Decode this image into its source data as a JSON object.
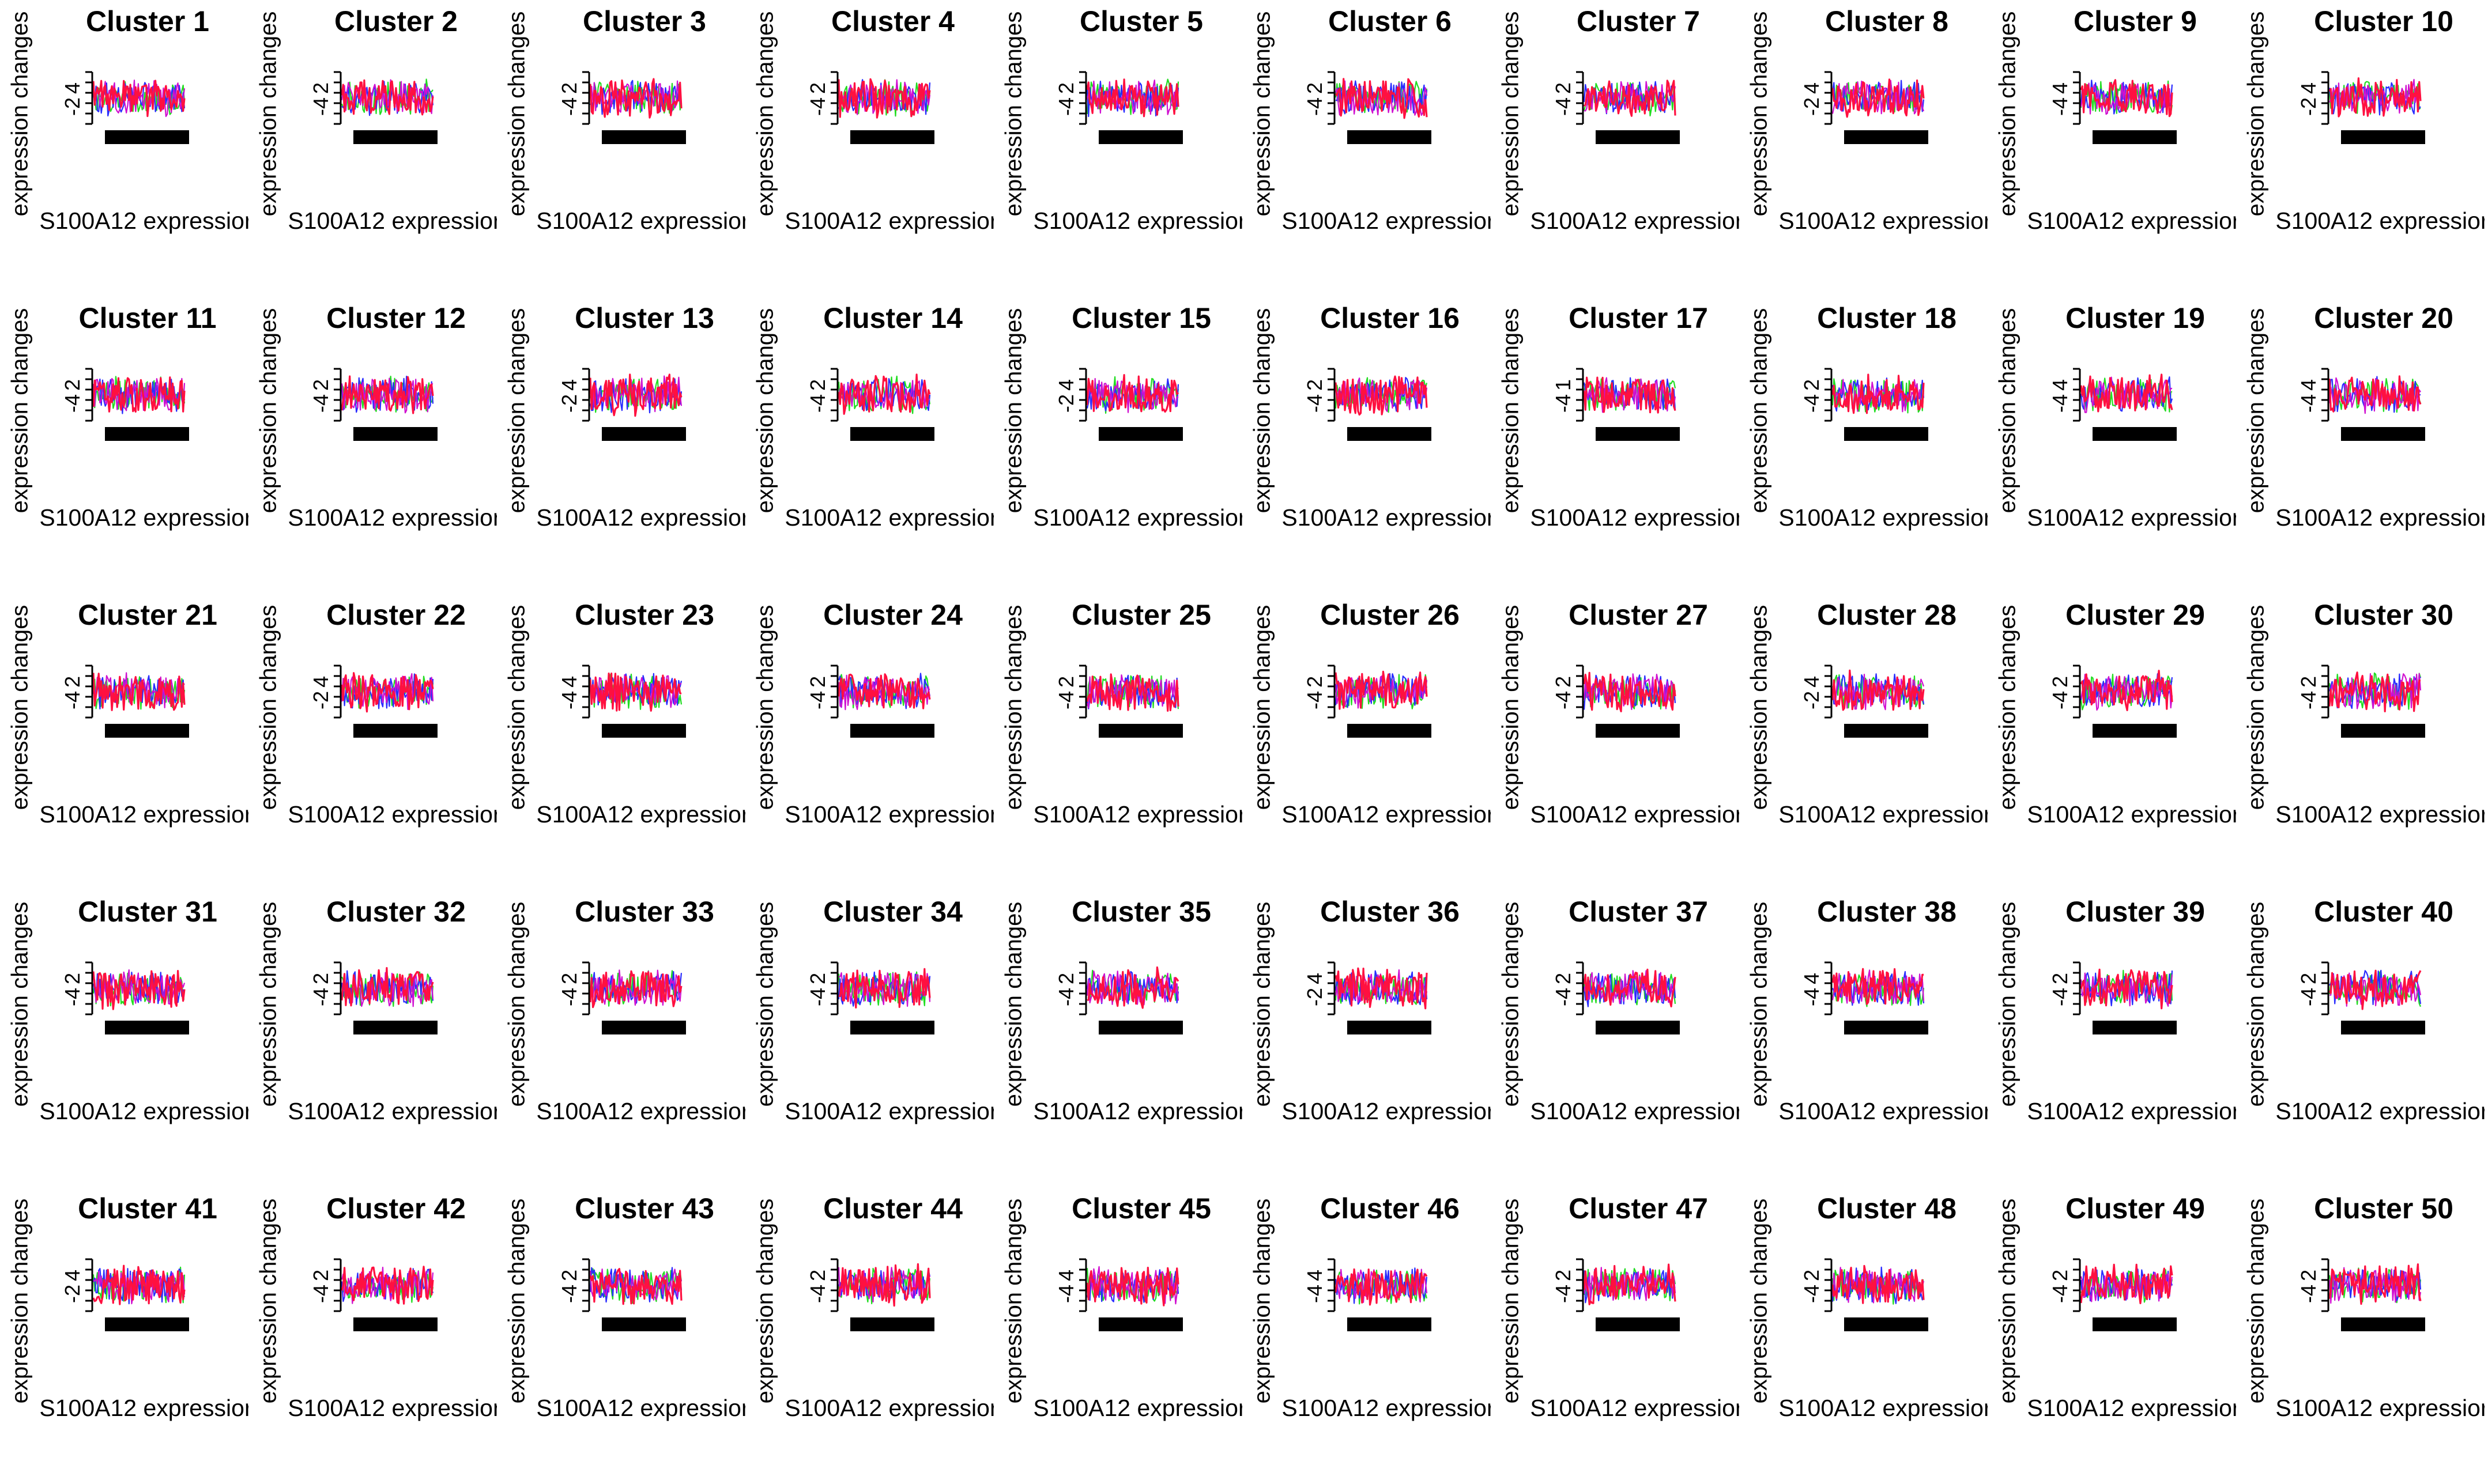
{
  "figure": {
    "rows": 5,
    "cols": 10
  },
  "colors": {
    "series_red": "#ff1040",
    "series_blue": "#2a2cff",
    "series_green": "#22dd22",
    "series_magenta": "#d010d0",
    "axis": "#000000",
    "bar": "#000000",
    "background": "#ffffff"
  },
  "chart_data": [
    {
      "type": "line",
      "title": "Cluster 1",
      "xlabel": "S100A12 expressior",
      "ylabel": "expression changes",
      "yticks": [
        "4",
        "-2"
      ]
    },
    {
      "type": "line",
      "title": "Cluster 2",
      "xlabel": "S100A12 expressior",
      "ylabel": "expression changes",
      "yticks": [
        "2",
        "-4"
      ]
    },
    {
      "type": "line",
      "title": "Cluster 3",
      "xlabel": "S100A12 expressior",
      "ylabel": "expression changes",
      "yticks": [
        "2",
        "-4"
      ]
    },
    {
      "type": "line",
      "title": "Cluster 4",
      "xlabel": "S100A12 expressior",
      "ylabel": "expression changes",
      "yticks": [
        "2",
        "-4"
      ]
    },
    {
      "type": "line",
      "title": "Cluster 5",
      "xlabel": "S100A12 expressior",
      "ylabel": "expression changes",
      "yticks": [
        "2",
        "-4"
      ]
    },
    {
      "type": "line",
      "title": "Cluster 6",
      "xlabel": "S100A12 expressior",
      "ylabel": "expression changes",
      "yticks": [
        "2",
        "-4"
      ]
    },
    {
      "type": "line",
      "title": "Cluster 7",
      "xlabel": "S100A12 expressior",
      "ylabel": "expression changes",
      "yticks": [
        "2",
        "-4"
      ]
    },
    {
      "type": "line",
      "title": "Cluster 8",
      "xlabel": "S100A12 expressior",
      "ylabel": "expression changes",
      "yticks": [
        "4",
        "-2"
      ]
    },
    {
      "type": "line",
      "title": "Cluster 9",
      "xlabel": "S100A12 expressior",
      "ylabel": "expression changes",
      "yticks": [
        "4",
        "-4"
      ]
    },
    {
      "type": "line",
      "title": "Cluster 10",
      "xlabel": "S100A12 expressior",
      "ylabel": "expression changes",
      "yticks": [
        "4",
        "-2"
      ]
    },
    {
      "type": "line",
      "title": "Cluster 11",
      "xlabel": "S100A12 expressior",
      "ylabel": "expression changes",
      "yticks": [
        "2",
        "-4"
      ]
    },
    {
      "type": "line",
      "title": "Cluster 12",
      "xlabel": "S100A12 expressior",
      "ylabel": "expression changes",
      "yticks": [
        "2",
        "-4"
      ]
    },
    {
      "type": "line",
      "title": "Cluster 13",
      "xlabel": "S100A12 expressior",
      "ylabel": "expression changes",
      "yticks": [
        "4",
        "-2"
      ]
    },
    {
      "type": "line",
      "title": "Cluster 14",
      "xlabel": "S100A12 expressior",
      "ylabel": "expression changes",
      "yticks": [
        "2",
        "-4"
      ]
    },
    {
      "type": "line",
      "title": "Cluster 15",
      "xlabel": "S100A12 expressior",
      "ylabel": "expression changes",
      "yticks": [
        "4",
        "-2"
      ]
    },
    {
      "type": "line",
      "title": "Cluster 16",
      "xlabel": "S100A12 expressior",
      "ylabel": "expression changes",
      "yticks": [
        "2",
        "-4"
      ]
    },
    {
      "type": "line",
      "title": "Cluster 17",
      "xlabel": "S100A12 expressior",
      "ylabel": "expression changes",
      "yticks": [
        "1",
        "-4"
      ]
    },
    {
      "type": "line",
      "title": "Cluster 18",
      "xlabel": "S100A12 expressior",
      "ylabel": "expression changes",
      "yticks": [
        "2",
        "-4"
      ]
    },
    {
      "type": "line",
      "title": "Cluster 19",
      "xlabel": "S100A12 expressior",
      "ylabel": "expression changes",
      "yticks": [
        "4",
        "-4"
      ]
    },
    {
      "type": "line",
      "title": "Cluster 20",
      "xlabel": "S100A12 expressior",
      "ylabel": "expression changes",
      "yticks": [
        "4",
        "-4"
      ]
    },
    {
      "type": "line",
      "title": "Cluster 21",
      "xlabel": "S100A12 expressior",
      "ylabel": "expression changes",
      "yticks": [
        "2",
        "-4"
      ]
    },
    {
      "type": "line",
      "title": "Cluster 22",
      "xlabel": "S100A12 expressior",
      "ylabel": "expression changes",
      "yticks": [
        "4",
        "-2"
      ]
    },
    {
      "type": "line",
      "title": "Cluster 23",
      "xlabel": "S100A12 expressior",
      "ylabel": "expression changes",
      "yticks": [
        "4",
        "-4"
      ]
    },
    {
      "type": "line",
      "title": "Cluster 24",
      "xlabel": "S100A12 expressior",
      "ylabel": "expression changes",
      "yticks": [
        "2",
        "-4"
      ]
    },
    {
      "type": "line",
      "title": "Cluster 25",
      "xlabel": "S100A12 expressior",
      "ylabel": "expression changes",
      "yticks": [
        "2",
        "-4"
      ]
    },
    {
      "type": "line",
      "title": "Cluster 26",
      "xlabel": "S100A12 expressior",
      "ylabel": "expression changes",
      "yticks": [
        "2",
        "-4"
      ]
    },
    {
      "type": "line",
      "title": "Cluster 27",
      "xlabel": "S100A12 expressior",
      "ylabel": "expression changes",
      "yticks": [
        "2",
        "-4"
      ]
    },
    {
      "type": "line",
      "title": "Cluster 28",
      "xlabel": "S100A12 expressior",
      "ylabel": "expression changes",
      "yticks": [
        "4",
        "-2"
      ]
    },
    {
      "type": "line",
      "title": "Cluster 29",
      "xlabel": "S100A12 expressior",
      "ylabel": "expression changes",
      "yticks": [
        "2",
        "-4"
      ]
    },
    {
      "type": "line",
      "title": "Cluster 30",
      "xlabel": "S100A12 expressior",
      "ylabel": "expression changes",
      "yticks": [
        "2",
        "-4"
      ]
    },
    {
      "type": "line",
      "title": "Cluster 31",
      "xlabel": "S100A12 expressior",
      "ylabel": "expression changes",
      "yticks": [
        "2",
        "-4"
      ]
    },
    {
      "type": "line",
      "title": "Cluster 32",
      "xlabel": "S100A12 expressior",
      "ylabel": "expression changes",
      "yticks": [
        "2",
        "-4"
      ]
    },
    {
      "type": "line",
      "title": "Cluster 33",
      "xlabel": "S100A12 expressior",
      "ylabel": "expression changes",
      "yticks": [
        "2",
        "-4"
      ]
    },
    {
      "type": "line",
      "title": "Cluster 34",
      "xlabel": "S100A12 expressior",
      "ylabel": "expression changes",
      "yticks": [
        "2",
        "-4"
      ]
    },
    {
      "type": "line",
      "title": "Cluster 35",
      "xlabel": "S100A12 expressior",
      "ylabel": "expression changes",
      "yticks": [
        "2",
        "-4"
      ]
    },
    {
      "type": "line",
      "title": "Cluster 36",
      "xlabel": "S100A12 expressior",
      "ylabel": "expression changes",
      "yticks": [
        "4",
        "-2"
      ]
    },
    {
      "type": "line",
      "title": "Cluster 37",
      "xlabel": "S100A12 expressior",
      "ylabel": "expression changes",
      "yticks": [
        "2",
        "-4"
      ]
    },
    {
      "type": "line",
      "title": "Cluster 38",
      "xlabel": "S100A12 expressior",
      "ylabel": "expression changes",
      "yticks": [
        "4",
        "-4"
      ]
    },
    {
      "type": "line",
      "title": "Cluster 39",
      "xlabel": "S100A12 expressior",
      "ylabel": "expression changes",
      "yticks": [
        "2",
        "-4"
      ]
    },
    {
      "type": "line",
      "title": "Cluster 40",
      "xlabel": "S100A12 expressior",
      "ylabel": "expression changes",
      "yticks": [
        "2",
        "-4"
      ]
    },
    {
      "type": "line",
      "title": "Cluster 41",
      "xlabel": "S100A12 expressior",
      "ylabel": "expression changes",
      "yticks": [
        "4",
        "-2"
      ]
    },
    {
      "type": "line",
      "title": "Cluster 42",
      "xlabel": "S100A12 expressior",
      "ylabel": "expression changes",
      "yticks": [
        "2",
        "-4"
      ]
    },
    {
      "type": "line",
      "title": "Cluster 43",
      "xlabel": "S100A12 expressior",
      "ylabel": "expression changes",
      "yticks": [
        "2",
        "-4"
      ]
    },
    {
      "type": "line",
      "title": "Cluster 44",
      "xlabel": "S100A12 expressior",
      "ylabel": "expression changes",
      "yticks": [
        "2",
        "-4"
      ]
    },
    {
      "type": "line",
      "title": "Cluster 45",
      "xlabel": "S100A12 expressior",
      "ylabel": "expression changes",
      "yticks": [
        "4",
        "-4"
      ]
    },
    {
      "type": "line",
      "title": "Cluster 46",
      "xlabel": "S100A12 expressior",
      "ylabel": "expression changes",
      "yticks": [
        "4",
        "-4"
      ]
    },
    {
      "type": "line",
      "title": "Cluster 47",
      "xlabel": "S100A12 expressior",
      "ylabel": "expression changes",
      "yticks": [
        "2",
        "-4"
      ]
    },
    {
      "type": "line",
      "title": "Cluster 48",
      "xlabel": "S100A12 expressior",
      "ylabel": "expression changes",
      "yticks": [
        "2",
        "-4"
      ]
    },
    {
      "type": "line",
      "title": "Cluster 49",
      "xlabel": "S100A12 expressior",
      "ylabel": "expression changes",
      "yticks": [
        "2",
        "-4"
      ]
    },
    {
      "type": "line",
      "title": "Cluster 50",
      "xlabel": "S100A12 expressior",
      "ylabel": "expression changes",
      "yticks": [
        "2",
        "-4"
      ]
    }
  ]
}
